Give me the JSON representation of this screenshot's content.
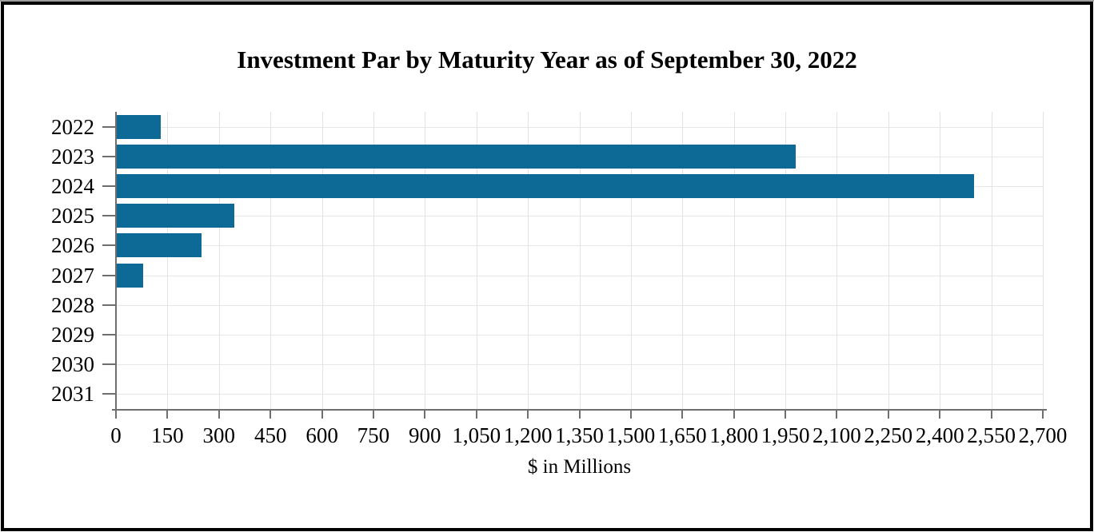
{
  "title": "Investment Par by Maturity Year as of September 30, 2022",
  "chart_data": {
    "type": "bar",
    "orientation": "horizontal",
    "title": "Investment Par by Maturity Year as of September 30, 2022",
    "xlabel": "$ in Millions",
    "ylabel": "",
    "categories": [
      "2022",
      "2023",
      "2024",
      "2025",
      "2026",
      "2027",
      "2028",
      "2029",
      "2030",
      "2031"
    ],
    "values": [
      130,
      1980,
      2500,
      345,
      250,
      80,
      0,
      0,
      0,
      0
    ],
    "xlim": [
      0,
      2700
    ],
    "x_tick_step": 150,
    "x_tick_labels": [
      "0",
      "150",
      "300",
      "450",
      "600",
      "750",
      "900",
      "1,050",
      "1,200",
      "1,350",
      "1,500",
      "1,650",
      "1,800",
      "1,950",
      "2,100",
      "2,250",
      "2,400",
      "2,550",
      "2,700"
    ],
    "grid": "both",
    "legend_position": "none",
    "colors": {
      "bar": "#0d6a96",
      "gridline_v": "#e3e3e3",
      "gridline_h": "#e7e7e7",
      "axis": "#6f6f6f",
      "text": "#000000",
      "frame_border": "#000000",
      "background": "#ffffff"
    }
  }
}
